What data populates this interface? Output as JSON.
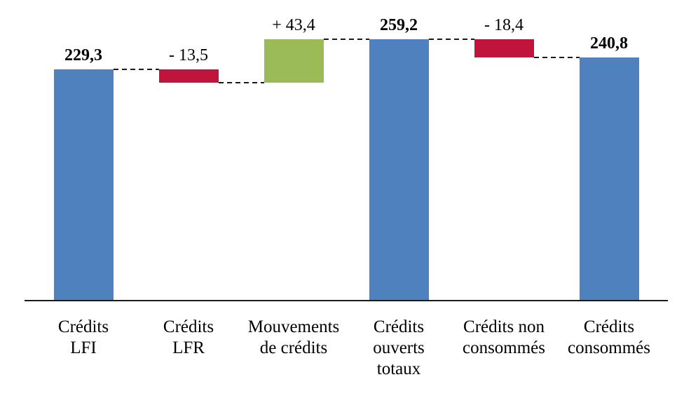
{
  "chart_data": {
    "type": "bar",
    "subtype": "waterfall",
    "title": "",
    "xlabel": "",
    "ylabel": "",
    "ylim": [
      0,
      298
    ],
    "grid": false,
    "legend": false,
    "categories": [
      "Crédits LFI",
      "Crédits LFR",
      "Mouvements de crédits",
      "Crédits ouverts totaux",
      "Crédits non consommés",
      "Crédits consommés"
    ],
    "bars": [
      {
        "name": "credits-lfi",
        "label_lines": [
          "Crédits",
          "LFI"
        ],
        "value": 229.3,
        "value_label": "229,3",
        "kind": "total"
      },
      {
        "name": "credits-lfr",
        "label_lines": [
          "Crédits",
          "LFR"
        ],
        "value": -13.5,
        "value_label": "- 13,5",
        "kind": "delta"
      },
      {
        "name": "mouvements-de-credits",
        "label_lines": [
          "Mouvements",
          "de crédits"
        ],
        "value": 43.4,
        "value_label": "+ 43,4",
        "kind": "delta"
      },
      {
        "name": "credits-ouverts-totaux",
        "label_lines": [
          "Crédits",
          "ouverts",
          "totaux"
        ],
        "value": 259.2,
        "value_label": "259,2",
        "kind": "total"
      },
      {
        "name": "credits-non-consommes",
        "label_lines": [
          "Crédits non",
          "consommés"
        ],
        "value": -18.4,
        "value_label": "- 18,4",
        "kind": "delta"
      },
      {
        "name": "credits-consommes",
        "label_lines": [
          "Crédits",
          "consommés"
        ],
        "value": 240.8,
        "value_label": "240,8",
        "kind": "total"
      }
    ],
    "colors": {
      "total": "#4E81BD",
      "increase": "#9BBB59",
      "decrease": "#C0143C",
      "connector": "#1A1A1A",
      "axis": "#1A1A1A",
      "text": "#000000"
    }
  }
}
